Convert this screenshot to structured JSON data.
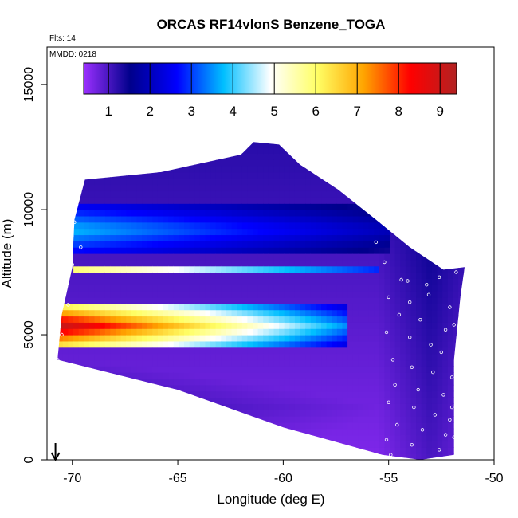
{
  "chart_data": {
    "type": "heatmap",
    "title": "ORCAS RF14vlonS Benzene_TOGA",
    "flights_label": "Flts: 14",
    "date_label": "MMDD: 0218",
    "xlabel": "Longitude (deg E)",
    "ylabel": "Altitude (m)",
    "xlim": [
      -71.2,
      -50
    ],
    "ylim": [
      0,
      16500
    ],
    "xticks": [
      -70,
      -65,
      -60,
      -55,
      -50
    ],
    "xtick_labels": [
      "-70",
      "-65",
      "-60",
      "-55",
      "-50"
    ],
    "yticks": [
      0,
      5000,
      10000,
      15000
    ],
    "ytick_labels": [
      "0",
      "5000",
      "10000",
      "15000"
    ],
    "colorbar": {
      "min": 0.4,
      "max": 9.4,
      "ticks": [
        1,
        2,
        3,
        4,
        5,
        6,
        7,
        8,
        9
      ],
      "tick_labels": [
        "1",
        "2",
        "3",
        "4",
        "5",
        "6",
        "7",
        "8",
        "9"
      ],
      "colors": [
        "#9b30ff",
        "#00008b",
        "#0000ff",
        "#00bfff",
        "#ffffff",
        "#ffff66",
        "#ffa500",
        "#ff0000",
        "#b22222"
      ]
    },
    "domain_polygon": [
      [
        -70.7,
        4000
      ],
      [
        -70.5,
        5800
      ],
      [
        -70.0,
        7700
      ],
      [
        -69.9,
        9600
      ],
      [
        -69.4,
        11200
      ],
      [
        -65.8,
        11500
      ],
      [
        -62.0,
        12200
      ],
      [
        -61.4,
        12700
      ],
      [
        -60.2,
        12600
      ],
      [
        -59.2,
        11800
      ],
      [
        -57.4,
        10800
      ],
      [
        -55.6,
        9600
      ],
      [
        -54.0,
        8500
      ],
      [
        -52.4,
        7600
      ],
      [
        -51.4,
        7700
      ],
      [
        -51.6,
        6500
      ],
      [
        -51.9,
        4000
      ],
      [
        -51.9,
        200
      ],
      [
        -53.5,
        0
      ],
      [
        -55.3,
        200
      ],
      [
        -60.0,
        1300
      ],
      [
        -65.0,
        2800
      ],
      [
        -70.7,
        4000
      ]
    ],
    "features": [
      {
        "name": "low-level benzene plume",
        "lon_start": -70.6,
        "lon_end": -57.0,
        "alt_min": 4500,
        "alt_max": 6200,
        "peak_value": 9.2,
        "edge_value": 3.5
      },
      {
        "name": "mid-level benzene layer",
        "lon_start": -70.0,
        "lon_end": -55.5,
        "alt_min": 7400,
        "alt_max": 7800,
        "peak_value": 6.2,
        "edge_value": 3.0
      },
      {
        "name": "upper-level moderate layer",
        "lon_start": -70.0,
        "lon_end": -55.0,
        "alt_min": 8200,
        "alt_max": 10200,
        "peak_value": 3.8,
        "edge_value": 2.0
      },
      {
        "name": "boundary-layer background",
        "lon_start": -70.7,
        "lon_end": -51.9,
        "alt_min": 0,
        "alt_max": 4200,
        "peak_value": 1.2,
        "edge_value": 0.6
      }
    ],
    "sample_points": [
      [
        -69.8,
        10700
      ],
      [
        -70.1,
        10000
      ],
      [
        -69.9,
        9500
      ],
      [
        -69.6,
        8500
      ],
      [
        -70.0,
        7800
      ],
      [
        -70.2,
        6200
      ],
      [
        -70.5,
        5000
      ],
      [
        -70.7,
        4000
      ],
      [
        -55.6,
        8700
      ],
      [
        -55.2,
        7900
      ],
      [
        -54.4,
        7200
      ],
      [
        -54.1,
        7150
      ],
      [
        -53.2,
        7000
      ],
      [
        -52.6,
        7300
      ],
      [
        -51.8,
        7500
      ],
      [
        -55.0,
        6500
      ],
      [
        -54.0,
        6300
      ],
      [
        -53.1,
        6600
      ],
      [
        -52.1,
        6100
      ],
      [
        -54.5,
        5800
      ],
      [
        -53.5,
        5600
      ],
      [
        -52.3,
        5200
      ],
      [
        -51.9,
        5400
      ],
      [
        -55.1,
        5100
      ],
      [
        -54.0,
        4900
      ],
      [
        -53.0,
        4600
      ],
      [
        -52.5,
        4300
      ],
      [
        -54.8,
        4000
      ],
      [
        -53.9,
        3700
      ],
      [
        -52.9,
        3500
      ],
      [
        -52.0,
        3300
      ],
      [
        -54.7,
        3000
      ],
      [
        -53.6,
        2800
      ],
      [
        -52.4,
        2600
      ],
      [
        -55.0,
        2300
      ],
      [
        -53.8,
        2100
      ],
      [
        -52.8,
        1800
      ],
      [
        -52.1,
        1600
      ],
      [
        -54.6,
        1400
      ],
      [
        -53.4,
        1200
      ],
      [
        -52.3,
        1000
      ],
      [
        -55.1,
        800
      ],
      [
        -53.9,
        600
      ],
      [
        -52.6,
        400
      ],
      [
        -54.9,
        200
      ],
      [
        -55.4,
        100
      ],
      [
        -52.0,
        2100
      ],
      [
        -51.9,
        900
      ]
    ],
    "marker_arrow_lon": -70.8
  }
}
